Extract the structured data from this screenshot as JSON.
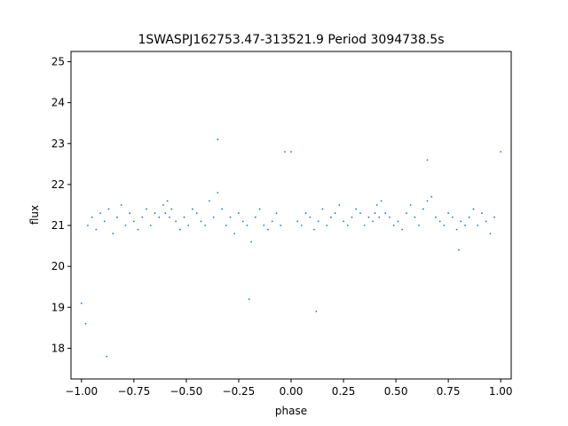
{
  "chart_data": {
    "type": "scatter",
    "title": "1SWASPJ162753.47-313521.9 Period 3094738.5s",
    "xlabel": "phase",
    "ylabel": "flux",
    "xlim": [
      -1.05,
      1.05
    ],
    "ylim": [
      17.25,
      25.25
    ],
    "grid": false,
    "point_color": "#1f77b4",
    "x_ticks": [
      -1.0,
      -0.75,
      -0.5,
      -0.25,
      0.0,
      0.25,
      0.5,
      0.75,
      1.0
    ],
    "x_tick_labels": [
      "−1.00",
      "−0.75",
      "−0.50",
      "−0.25",
      "0.00",
      "0.25",
      "0.50",
      "0.75",
      "1.00"
    ],
    "y_ticks": [
      18,
      19,
      20,
      21,
      22,
      23,
      24,
      25
    ],
    "y_tick_labels": [
      "18",
      "19",
      "20",
      "21",
      "22",
      "23",
      "24",
      "25"
    ],
    "series": [
      {
        "x": [
          -0.97,
          -0.95,
          -0.93,
          -0.91,
          -0.89,
          -0.87,
          -0.85,
          -0.83,
          -0.81,
          -0.79,
          -0.77,
          -0.75,
          -0.73,
          -0.71,
          -0.69,
          -0.67,
          -0.65,
          -0.63,
          -0.61,
          -0.59,
          -0.57,
          -0.55,
          -0.53,
          -0.51,
          -0.49,
          -0.47,
          -0.45,
          -0.43,
          -0.41,
          -0.39,
          -0.37,
          -0.35,
          -0.33,
          -0.31,
          -0.29,
          -0.27,
          -0.25,
          -0.23,
          -0.21,
          -0.19,
          -0.17,
          -0.15,
          -0.13,
          -0.11,
          -0.09,
          -0.07,
          -0.05,
          -0.03,
          0.03,
          0.05,
          0.07,
          0.09,
          0.11,
          0.13,
          0.15,
          0.17,
          0.19,
          0.21,
          0.23,
          0.25,
          0.27,
          0.29,
          0.31,
          0.33,
          0.35,
          0.37,
          0.39,
          0.41,
          0.43,
          0.45,
          0.47,
          0.49,
          0.51,
          0.53,
          0.55,
          0.57,
          0.59,
          0.61,
          0.63,
          0.65,
          0.67,
          0.69,
          0.71,
          0.73,
          0.75,
          0.77,
          0.79,
          0.81,
          0.83,
          0.85,
          0.87,
          0.89,
          0.91,
          0.93,
          0.95,
          0.97,
          1.0,
          -1.0,
          -0.98,
          0.0,
          -0.6,
          -0.58,
          0.4,
          0.42,
          -0.88,
          0.12,
          -0.35,
          0.65,
          -0.2,
          0.8
        ],
        "y": [
          21.0,
          21.2,
          20.9,
          21.3,
          21.1,
          21.4,
          20.8,
          21.2,
          21.5,
          21.0,
          21.3,
          21.1,
          20.9,
          21.2,
          21.4,
          21.0,
          21.3,
          21.2,
          21.5,
          21.6,
          21.4,
          21.1,
          20.9,
          21.2,
          21.0,
          21.4,
          21.3,
          21.1,
          21.0,
          21.6,
          21.2,
          21.8,
          21.4,
          21.0,
          21.2,
          20.8,
          21.3,
          21.1,
          21.0,
          20.6,
          21.2,
          21.4,
          21.0,
          20.9,
          21.1,
          21.3,
          21.0,
          22.8,
          21.1,
          21.0,
          21.3,
          21.2,
          20.9,
          21.1,
          21.4,
          21.0,
          21.2,
          21.3,
          21.5,
          21.1,
          21.0,
          21.2,
          21.4,
          21.3,
          21.0,
          21.2,
          21.1,
          21.5,
          21.6,
          21.3,
          21.2,
          21.0,
          21.1,
          20.9,
          21.3,
          21.5,
          21.2,
          21.0,
          21.4,
          21.6,
          21.7,
          21.2,
          21.1,
          21.0,
          21.3,
          21.2,
          20.9,
          21.1,
          21.0,
          21.2,
          21.4,
          21.0,
          21.3,
          21.1,
          20.8,
          21.2,
          22.8,
          19.1,
          18.6,
          22.8,
          21.3,
          21.2,
          21.3,
          21.2,
          17.8,
          18.9,
          23.1,
          22.6,
          19.2,
          20.4
        ]
      }
    ]
  }
}
